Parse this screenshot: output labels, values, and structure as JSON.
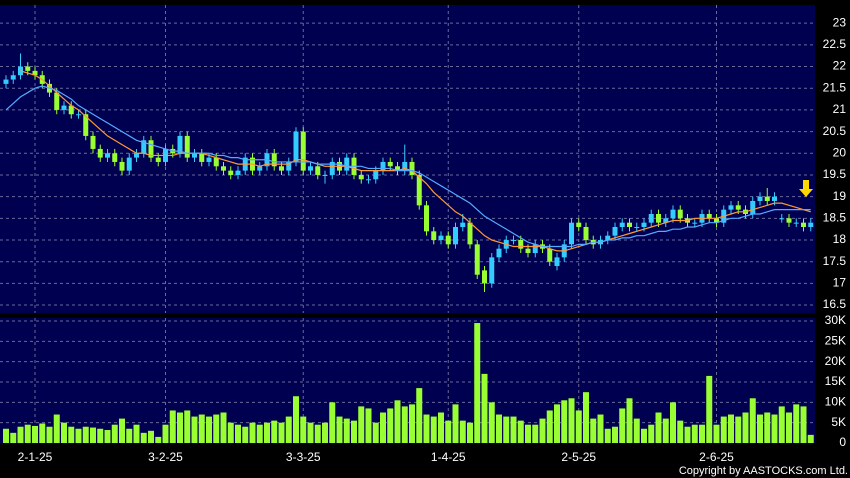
{
  "chart_data": {
    "type": "candlestick",
    "categories": [
      null,
      null,
      null,
      null,
      "2-1-25",
      null,
      null,
      null,
      null,
      null,
      null,
      null,
      null,
      null,
      null,
      null,
      null,
      null,
      null,
      null,
      null,
      null,
      "3-2-25",
      null,
      null,
      null,
      null,
      null,
      null,
      null,
      null,
      null,
      null,
      null,
      null,
      null,
      null,
      null,
      null,
      null,
      null,
      "3-3-25",
      null,
      null,
      null,
      null,
      null,
      null,
      null,
      null,
      null,
      null,
      null,
      null,
      null,
      null,
      null,
      null,
      null,
      null,
      null,
      "1-4-25",
      null,
      null,
      null,
      null,
      null,
      null,
      null,
      null,
      null,
      null,
      null,
      null,
      null,
      null,
      null,
      null,
      null,
      "2-5-25",
      null,
      null,
      null,
      null,
      null,
      null,
      null,
      null,
      null,
      null,
      null,
      null,
      null,
      null,
      null,
      null,
      null,
      null,
      "2-6-25",
      null,
      null,
      null,
      null,
      null,
      null,
      null,
      null,
      null,
      null,
      null,
      null,
      null
    ],
    "open": [
      21.6,
      21.7,
      21.8,
      22.0,
      21.9,
      21.8,
      21.6,
      21.4,
      21.0,
      21.1,
      20.9,
      20.9,
      20.4,
      20.1,
      19.9,
      20.0,
      19.8,
      19.6,
      19.9,
      20.0,
      20.3,
      19.9,
      19.8,
      20.1,
      20.0,
      20.4,
      19.9,
      20.0,
      19.8,
      19.9,
      19.7,
      19.6,
      19.5,
      19.6,
      19.9,
      19.6,
      19.7,
      20.0,
      19.7,
      19.6,
      19.8,
      20.5,
      19.6,
      19.7,
      19.5,
      19.5,
      19.8,
      19.6,
      19.9,
      19.5,
      19.4,
      19.4,
      19.6,
      19.8,
      19.7,
      19.6,
      19.8,
      19.5,
      18.8,
      18.2,
      18.0,
      18.1,
      17.9,
      18.3,
      18.4,
      17.9,
      17.3,
      17.0,
      17.6,
      17.8,
      18.0,
      18.0,
      17.8,
      17.7,
      17.9,
      17.8,
      17.4,
      17.6,
      17.9,
      18.4,
      18.3,
      18.0,
      17.9,
      18.0,
      18.1,
      18.3,
      18.4,
      18.3,
      18.3,
      18.4,
      18.6,
      18.4,
      18.5,
      18.7,
      18.5,
      18.4,
      18.4,
      18.6,
      18.5,
      18.4,
      18.7,
      18.8,
      18.7,
      18.6,
      18.9,
      19.0,
      18.9,
      18.5,
      18.5,
      18.4,
      18.4,
      18.3
    ],
    "high": [
      21.8,
      21.9,
      22.3,
      22.1,
      22.0,
      21.9,
      21.7,
      21.5,
      21.2,
      21.2,
      21.0,
      21.0,
      20.5,
      20.2,
      20.1,
      20.1,
      19.9,
      20.0,
      20.1,
      20.4,
      20.4,
      20.0,
      20.2,
      20.2,
      20.5,
      20.5,
      20.1,
      20.1,
      20.0,
      20.0,
      19.8,
      19.7,
      19.7,
      20.0,
      20.0,
      19.8,
      20.1,
      20.1,
      19.8,
      19.9,
      20.6,
      20.6,
      19.8,
      19.8,
      19.6,
      19.9,
      19.9,
      20.0,
      20.0,
      19.6,
      19.5,
      19.7,
      19.9,
      19.9,
      19.8,
      20.2,
      19.9,
      19.6,
      18.9,
      18.3,
      18.2,
      18.2,
      18.4,
      18.6,
      18.5,
      18.0,
      17.4,
      17.7,
      17.9,
      18.1,
      18.1,
      18.1,
      17.9,
      18.0,
      18.0,
      17.9,
      17.7,
      18.0,
      18.5,
      18.5,
      18.4,
      18.1,
      18.1,
      18.2,
      18.4,
      18.5,
      18.5,
      18.4,
      18.5,
      18.7,
      18.7,
      18.6,
      18.8,
      18.8,
      18.6,
      18.5,
      18.7,
      18.7,
      18.6,
      18.8,
      18.9,
      18.9,
      18.8,
      19.0,
      19.1,
      19.2,
      19.1,
      18.6,
      18.6,
      18.5,
      18.5,
      18.5
    ],
    "low": [
      21.5,
      21.6,
      21.7,
      21.8,
      21.7,
      21.5,
      21.3,
      20.9,
      20.9,
      20.8,
      20.8,
      20.3,
      20.0,
      19.8,
      19.8,
      19.7,
      19.5,
      19.5,
      19.8,
      19.9,
      19.8,
      19.7,
      19.7,
      19.9,
      19.9,
      19.8,
      19.8,
      19.7,
      19.7,
      19.6,
      19.5,
      19.4,
      19.4,
      19.5,
      19.5,
      19.5,
      19.6,
      19.6,
      19.5,
      19.5,
      19.7,
      19.5,
      19.5,
      19.4,
      19.3,
      19.4,
      19.5,
      19.5,
      19.4,
      19.3,
      19.3,
      19.3,
      19.5,
      19.6,
      19.5,
      19.5,
      19.4,
      18.7,
      18.1,
      17.9,
      17.9,
      17.8,
      17.8,
      18.2,
      17.8,
      17.1,
      16.8,
      16.9,
      17.5,
      17.7,
      17.9,
      17.7,
      17.6,
      17.6,
      17.7,
      17.4,
      17.3,
      17.5,
      17.8,
      18.2,
      17.9,
      17.8,
      17.8,
      17.9,
      18.0,
      18.2,
      18.2,
      18.2,
      18.2,
      18.3,
      18.3,
      18.3,
      18.4,
      18.4,
      18.3,
      18.3,
      18.3,
      18.4,
      18.3,
      18.3,
      18.6,
      18.6,
      18.5,
      18.5,
      18.8,
      18.8,
      18.8,
      18.4,
      18.3,
      18.3,
      18.2,
      18.2
    ],
    "close": [
      21.7,
      21.8,
      22.0,
      21.9,
      21.8,
      21.6,
      21.4,
      21.0,
      21.1,
      20.9,
      20.9,
      20.4,
      20.1,
      19.9,
      20.0,
      19.8,
      19.6,
      19.9,
      20.0,
      20.3,
      19.9,
      19.8,
      20.1,
      20.0,
      20.4,
      19.9,
      20.0,
      19.8,
      19.9,
      19.7,
      19.6,
      19.5,
      19.6,
      19.9,
      19.6,
      19.7,
      20.0,
      19.7,
      19.6,
      19.8,
      20.5,
      19.6,
      19.7,
      19.5,
      19.5,
      19.8,
      19.6,
      19.9,
      19.5,
      19.4,
      19.4,
      19.6,
      19.8,
      19.7,
      19.6,
      19.8,
      19.5,
      18.8,
      18.2,
      18.0,
      18.1,
      17.9,
      18.3,
      18.4,
      17.9,
      17.2,
      17.0,
      17.6,
      17.8,
      18.0,
      18.0,
      17.8,
      17.7,
      17.9,
      17.8,
      17.5,
      17.6,
      17.9,
      18.4,
      18.3,
      18.0,
      17.9,
      18.0,
      18.1,
      18.3,
      18.4,
      18.3,
      18.3,
      18.4,
      18.6,
      18.4,
      18.5,
      18.7,
      18.5,
      18.4,
      18.4,
      18.6,
      18.5,
      18.4,
      18.7,
      18.8,
      18.7,
      18.6,
      18.9,
      19.0,
      18.9,
      19.0,
      18.5,
      18.4,
      18.4,
      18.3,
      18.4
    ],
    "up_color": "#33ccff",
    "down_color": "#99ff33",
    "series": [
      {
        "color": "#ff9933",
        "values": [
          null,
          null,
          21.9,
          21.85,
          21.8,
          21.7,
          21.55,
          21.4,
          21.25,
          21.1,
          21.0,
          20.85,
          20.7,
          20.55,
          20.4,
          20.3,
          20.2,
          20.1,
          20.0,
          20.0,
          19.95,
          19.95,
          19.95,
          19.95,
          20.0,
          20.0,
          20.0,
          20.0,
          19.95,
          19.9,
          19.85,
          19.8,
          19.75,
          19.75,
          19.75,
          19.7,
          19.75,
          19.75,
          19.75,
          19.75,
          19.85,
          19.85,
          19.8,
          19.75,
          19.7,
          19.7,
          19.7,
          19.7,
          19.65,
          19.6,
          19.6,
          19.6,
          19.6,
          19.6,
          19.6,
          19.65,
          19.6,
          19.45,
          19.3,
          19.1,
          18.95,
          18.8,
          18.65,
          18.55,
          18.4,
          18.25,
          18.1,
          18.0,
          17.95,
          17.9,
          17.85,
          17.85,
          17.85,
          17.85,
          17.85,
          17.8,
          17.75,
          17.75,
          17.8,
          17.85,
          17.9,
          17.95,
          17.95,
          18.0,
          18.05,
          18.1,
          18.15,
          18.2,
          18.25,
          18.3,
          18.35,
          18.4,
          18.45,
          18.45,
          18.45,
          18.5,
          18.5,
          18.5,
          18.5,
          18.55,
          18.6,
          18.65,
          18.65,
          18.7,
          18.75,
          18.8,
          18.85,
          18.85,
          18.8,
          18.75,
          18.7,
          18.65
        ]
      },
      {
        "color": "#55aaff",
        "values": [
          21.0,
          21.15,
          21.3,
          21.4,
          21.5,
          21.55,
          21.5,
          21.45,
          21.35,
          21.25,
          21.1,
          21.0,
          20.9,
          20.8,
          20.7,
          20.6,
          20.5,
          20.4,
          20.3,
          20.25,
          20.2,
          20.15,
          20.1,
          20.05,
          20.05,
          20.0,
          20.0,
          20.0,
          20.0,
          19.95,
          19.95,
          19.9,
          19.9,
          19.85,
          19.85,
          19.85,
          19.85,
          19.8,
          19.8,
          19.8,
          19.8,
          19.8,
          19.8,
          19.75,
          19.75,
          19.75,
          19.75,
          19.7,
          19.7,
          19.7,
          19.65,
          19.65,
          19.65,
          19.65,
          19.6,
          19.6,
          19.6,
          19.55,
          19.45,
          19.35,
          19.25,
          19.15,
          19.05,
          18.95,
          18.85,
          18.7,
          18.55,
          18.45,
          18.35,
          18.25,
          18.15,
          18.05,
          17.95,
          17.9,
          17.85,
          17.85,
          17.85,
          17.85,
          17.85,
          17.9,
          17.9,
          17.95,
          17.95,
          18.0,
          18.0,
          18.05,
          18.05,
          18.1,
          18.1,
          18.15,
          18.2,
          18.2,
          18.25,
          18.25,
          18.3,
          18.3,
          18.35,
          18.4,
          18.4,
          18.45,
          18.5,
          18.5,
          18.55,
          18.6,
          18.6,
          18.65,
          18.7,
          18.7,
          18.7,
          18.7,
          18.7,
          18.7
        ]
      }
    ],
    "ylim": [
      16.34,
      23.35
    ],
    "yticks": [
      16.5,
      17,
      17.5,
      18,
      18.5,
      19,
      19.5,
      20,
      20.5,
      21,
      21.5,
      22,
      22.5,
      23
    ],
    "volume": [
      3500,
      2500,
      4000,
      4500,
      4200,
      4800,
      4000,
      7000,
      5000,
      4000,
      3500,
      4000,
      3800,
      3500,
      3200,
      4500,
      6000,
      3500,
      4500,
      2500,
      3000,
      1500,
      4500,
      8000,
      7500,
      8000,
      6500,
      7000,
      6500,
      7000,
      7500,
      5000,
      4500,
      4000,
      5000,
      4500,
      5000,
      5500,
      5000,
      6500,
      11500,
      6500,
      5000,
      4500,
      5000,
      10000,
      6500,
      6000,
      5500,
      9000,
      8500,
      5000,
      7500,
      8500,
      10500,
      9000,
      9500,
      13500,
      7000,
      6500,
      7500,
      5500,
      9500,
      5500,
      5000,
      29500,
      17000,
      10000,
      7000,
      6500,
      6500,
      5500,
      4500,
      4500,
      6000,
      8000,
      9500,
      10500,
      11000,
      8000,
      12500,
      6000,
      7000,
      3500,
      4000,
      8500,
      11000,
      6000,
      3500,
      4500,
      7500,
      6000,
      10000,
      5500,
      4000,
      4500,
      4500,
      16500,
      4500,
      6500,
      7000,
      6500,
      7500,
      11000,
      7000,
      7500,
      7000,
      9000,
      7500,
      9500,
      9000,
      2000
    ],
    "volume_color": "#99ff33",
    "y2lim": [
      0,
      30740
    ],
    "y2ticks": [
      0,
      {
        "value": 5000,
        "label": "5K"
      },
      {
        "value": 10000,
        "label": "10K"
      },
      {
        "value": 15000,
        "label": "15K"
      },
      {
        "value": 20000,
        "label": "20K"
      },
      {
        "value": 25000,
        "label": "25K"
      },
      {
        "value": 30000,
        "label": "30K"
      }
    ],
    "grid": true,
    "copyright": "Copyright by AASTOCKS.com Ltd."
  }
}
